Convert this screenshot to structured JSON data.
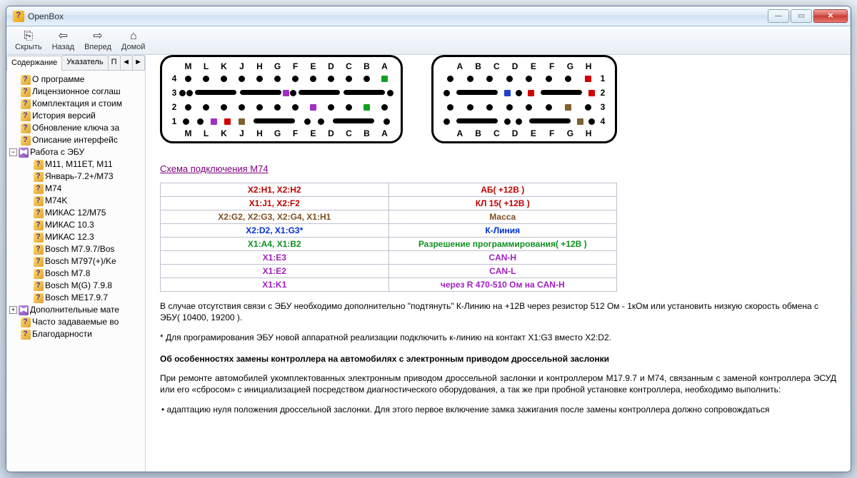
{
  "window": {
    "title": "OpenBox"
  },
  "toolbar": {
    "hide": "Скрыть",
    "back": "Назад",
    "forward": "Вперед",
    "home": "Домой"
  },
  "tabs": {
    "contents": "Содержание",
    "index": "Указатель",
    "search": "П",
    "left": "◄",
    "right": "►"
  },
  "tree": [
    {
      "level": 1,
      "icon": "help",
      "label": "О программе"
    },
    {
      "level": 1,
      "icon": "help",
      "label": "Лицензионное соглаш"
    },
    {
      "level": 1,
      "icon": "help",
      "label": "Комплектация и стоим"
    },
    {
      "level": 1,
      "icon": "help",
      "label": "История версий"
    },
    {
      "level": 1,
      "icon": "help",
      "label": "Обновление ключа за"
    },
    {
      "level": 1,
      "icon": "help",
      "label": "Описание интерфейс"
    },
    {
      "level": 0,
      "icon": "book",
      "exp": "−",
      "label": "Работа с ЭБУ"
    },
    {
      "level": 2,
      "icon": "help",
      "label": "М11, М11ЕТ, М11"
    },
    {
      "level": 2,
      "icon": "help",
      "label": "Январь-7.2+/М73"
    },
    {
      "level": 2,
      "icon": "help",
      "label": "М74"
    },
    {
      "level": 2,
      "icon": "help",
      "label": "М74K"
    },
    {
      "level": 2,
      "icon": "help",
      "label": "МИКАС 12/М75"
    },
    {
      "level": 2,
      "icon": "help",
      "label": "МИКАС 10.3"
    },
    {
      "level": 2,
      "icon": "help",
      "label": "МИКАС 12.3"
    },
    {
      "level": 2,
      "icon": "help",
      "label": "Bosch M7.9.7/Bos"
    },
    {
      "level": 2,
      "icon": "help",
      "label": "Bosch M797(+)/Ke"
    },
    {
      "level": 2,
      "icon": "help",
      "label": "Bosch M7.8"
    },
    {
      "level": 2,
      "icon": "help",
      "label": "Bosch M(G) 7.9.8"
    },
    {
      "level": 2,
      "icon": "help",
      "label": "Bosch ME17.9.7"
    },
    {
      "level": 0,
      "icon": "book",
      "exp": "+",
      "label": "Дополнительные мате"
    },
    {
      "level": 1,
      "icon": "help",
      "label": "Часто задаваемые во"
    },
    {
      "level": 1,
      "icon": "help",
      "label": "Благодарности"
    }
  ],
  "content": {
    "link_title": "Схема подключения М74",
    "connector1": {
      "cols_top": [
        "M",
        "L",
        "K",
        "J",
        "H",
        "G",
        "F",
        "E",
        "D",
        "C",
        "B",
        "A"
      ],
      "cols_bottom": [
        "M",
        "L",
        "K",
        "J",
        "H",
        "G",
        "F",
        "E",
        "D",
        "C",
        "B",
        "A"
      ]
    },
    "connector2": {
      "cols_top": [
        "A",
        "B",
        "C",
        "D",
        "E",
        "F",
        "G",
        "H"
      ],
      "cols_bottom": [
        "A",
        "B",
        "C",
        "D",
        "E",
        "F",
        "G",
        "H"
      ]
    },
    "table": [
      {
        "left": "X2:H1, X2:H2",
        "right": "АБ( +12В )",
        "color": "#c00000"
      },
      {
        "left": "X1:J1, X2:F2",
        "right": "КЛ 15( +12В )",
        "color": "#c00000"
      },
      {
        "left": "X2:G2, X2:G3, X2:G4, X1:H1",
        "right": "Масса",
        "color": "#805020"
      },
      {
        "left": "X2:D2, X1:G3*",
        "right": "К-Линия",
        "color": "#0030d0"
      },
      {
        "left": "X1:A4, X1:B2",
        "right": "Разрешение программирования( +12В )",
        "color": "#109020"
      },
      {
        "left": "X1:E3",
        "right": "CAN-H",
        "color": "#a020c0"
      },
      {
        "left": "X1:E2",
        "right": "CAN-L",
        "color": "#a020c0"
      },
      {
        "left": "X1:K1",
        "right": "через R 470-510 Ом на CAN-H",
        "color": "#a020c0"
      }
    ],
    "para1": "В случае отсутствия связи с ЭБУ необходимо дополнительно \"подтянуть\" К-Линию на +12В через резистор 512 Ом - 1кОм или установить низкую скорость обмена с ЭБУ( 10400, 19200 ).",
    "para2": "* Для програмирования ЭБУ новой аппаратной реализации подключить к-линию на контакт X1:G3 вместо X2:D2.",
    "heading": "Об особенностях замены контроллера на автомобилях с электронным приводом дроссельной заслонки",
    "para3": "При ремонте автомобилей укомплектованных электронным приводом дроссельной заслонки и контроллером М17.9.7 и М74, связанным с заменой контроллера ЭСУД или его «сбросом» с инициализацией посредством диагностического оборудования, а так же при пробной установке контроллера, необходимо выполнить:",
    "bullet1": "• адаптацию нуля положения дроссельной заслонки. Для этого первое включение замка зажигания после замены контроллера должно сопровождаться"
  },
  "colors": {
    "red": "#d00000",
    "green": "#10a020",
    "blue": "#2040d0",
    "brown": "#806030",
    "purple": "#a030c0",
    "black": "#000000"
  }
}
